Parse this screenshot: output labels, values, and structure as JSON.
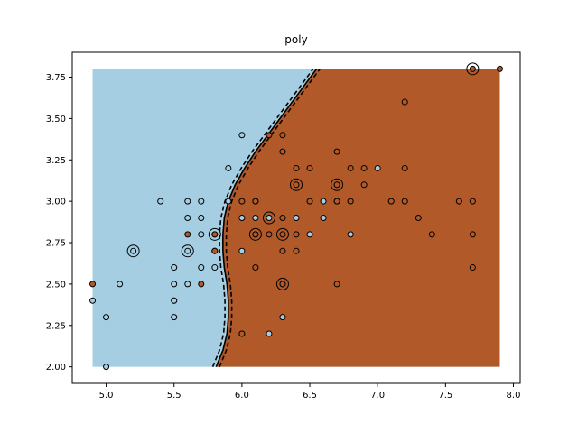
{
  "chart_data": {
    "type": "scatter",
    "title": "poly",
    "xlabel": "",
    "ylabel": "",
    "xlim": [
      4.75,
      8.05
    ],
    "ylim": [
      1.9,
      3.9
    ],
    "xticks": [
      "5.0",
      "5.5",
      "6.0",
      "6.5",
      "7.0",
      "7.5",
      "8.0"
    ],
    "xtick_values": [
      5.0,
      5.5,
      6.0,
      6.5,
      7.0,
      7.5,
      8.0
    ],
    "yticks": [
      "2.00",
      "2.25",
      "2.50",
      "2.75",
      "3.00",
      "3.25",
      "3.50",
      "3.75"
    ],
    "ytick_values": [
      2.0,
      2.25,
      2.5,
      2.75,
      3.0,
      3.25,
      3.5,
      3.75
    ],
    "grid": false,
    "colors": {
      "class_0_region": "#a6cee3",
      "class_1_region": "#b15928",
      "class_0_point": "#a6cee3",
      "class_1_point": "#b15928",
      "edge": "#000000"
    },
    "decision_region": {
      "x_range": [
        4.9,
        7.9
      ],
      "y_range": [
        2.0,
        3.8
      ],
      "boundary": [
        [
          5.81,
          2.0
        ],
        [
          5.86,
          2.1
        ],
        [
          5.89,
          2.2
        ],
        [
          5.9,
          2.3
        ],
        [
          5.9,
          2.4
        ],
        [
          5.89,
          2.5
        ],
        [
          5.87,
          2.6
        ],
        [
          5.86,
          2.7
        ],
        [
          5.86,
          2.8
        ],
        [
          5.87,
          2.9
        ],
        [
          5.9,
          3.0
        ],
        [
          5.95,
          3.1
        ],
        [
          6.02,
          3.2
        ],
        [
          6.1,
          3.3
        ],
        [
          6.19,
          3.4
        ],
        [
          6.28,
          3.5
        ],
        [
          6.37,
          3.6
        ],
        [
          6.46,
          3.7
        ],
        [
          6.55,
          3.8
        ]
      ],
      "margin_offset": 0.025
    },
    "series": [
      {
        "name": "",
        "class": 0,
        "points": [
          [
            4.9,
            2.4
          ],
          [
            5.0,
            2.3
          ],
          [
            5.0,
            2.0
          ],
          [
            5.1,
            2.5
          ],
          [
            5.2,
            2.7
          ],
          [
            5.4,
            3.0
          ],
          [
            5.5,
            2.3
          ],
          [
            5.5,
            2.4
          ],
          [
            5.5,
            2.4
          ],
          [
            5.5,
            2.5
          ],
          [
            5.5,
            2.6
          ],
          [
            5.6,
            2.5
          ],
          [
            5.6,
            2.7
          ],
          [
            5.6,
            2.9
          ],
          [
            5.6,
            3.0
          ],
          [
            5.7,
            2.6
          ],
          [
            5.7,
            2.8
          ],
          [
            5.7,
            2.9
          ],
          [
            5.7,
            3.0
          ],
          [
            5.8,
            2.6
          ],
          [
            5.8,
            2.7
          ],
          [
            5.8,
            2.7
          ],
          [
            5.8,
            2.8
          ],
          [
            5.9,
            3.0
          ],
          [
            5.9,
            3.2
          ],
          [
            6.0,
            2.2
          ],
          [
            6.0,
            2.7
          ],
          [
            6.0,
            2.9
          ],
          [
            6.0,
            3.4
          ],
          [
            6.1,
            2.8
          ],
          [
            6.1,
            2.9
          ],
          [
            6.1,
            3.0
          ],
          [
            6.2,
            2.2
          ],
          [
            6.2,
            2.9
          ],
          [
            6.3,
            2.3
          ],
          [
            6.3,
            2.5
          ],
          [
            6.4,
            2.9
          ],
          [
            6.5,
            2.8
          ],
          [
            6.6,
            2.9
          ],
          [
            6.6,
            3.0
          ],
          [
            6.7,
            3.0
          ],
          [
            6.7,
            3.1
          ],
          [
            6.8,
            2.8
          ],
          [
            7.0,
            3.2
          ]
        ]
      },
      {
        "name": "",
        "class": 1,
        "points": [
          [
            4.9,
            2.5
          ],
          [
            5.6,
            2.8
          ],
          [
            5.7,
            2.5
          ],
          [
            5.8,
            2.8
          ],
          [
            5.8,
            2.7
          ],
          [
            6.0,
            2.2
          ],
          [
            6.0,
            3.0
          ],
          [
            6.1,
            2.6
          ],
          [
            6.1,
            3.0
          ],
          [
            6.1,
            2.8
          ],
          [
            6.2,
            2.8
          ],
          [
            6.2,
            3.4
          ],
          [
            6.3,
            2.5
          ],
          [
            6.3,
            2.7
          ],
          [
            6.3,
            2.8
          ],
          [
            6.3,
            2.9
          ],
          [
            6.3,
            3.3
          ],
          [
            6.3,
            3.4
          ],
          [
            6.4,
            2.7
          ],
          [
            6.4,
            2.8
          ],
          [
            6.4,
            3.1
          ],
          [
            6.4,
            3.2
          ],
          [
            6.5,
            3.0
          ],
          [
            6.5,
            3.2
          ],
          [
            6.7,
            2.5
          ],
          [
            6.7,
            3.0
          ],
          [
            6.7,
            3.1
          ],
          [
            6.7,
            3.3
          ],
          [
            6.8,
            3.0
          ],
          [
            6.8,
            3.2
          ],
          [
            6.9,
            3.1
          ],
          [
            6.9,
            3.2
          ],
          [
            7.1,
            3.0
          ],
          [
            7.2,
            3.0
          ],
          [
            7.2,
            3.2
          ],
          [
            7.2,
            3.6
          ],
          [
            7.3,
            2.9
          ],
          [
            7.4,
            2.8
          ],
          [
            7.6,
            3.0
          ],
          [
            7.7,
            2.6
          ],
          [
            7.7,
            2.8
          ],
          [
            7.7,
            3.0
          ],
          [
            7.7,
            3.8
          ],
          [
            7.9,
            3.8
          ]
        ]
      }
    ],
    "support_vectors": [
      [
        5.2,
        2.7
      ],
      [
        5.6,
        2.7
      ],
      [
        5.8,
        2.8
      ],
      [
        6.1,
        2.8
      ],
      [
        6.2,
        2.9
      ],
      [
        6.3,
        2.8
      ],
      [
        6.3,
        2.5
      ],
      [
        6.4,
        3.1
      ],
      [
        6.7,
        3.1
      ],
      [
        7.7,
        3.8
      ]
    ]
  }
}
